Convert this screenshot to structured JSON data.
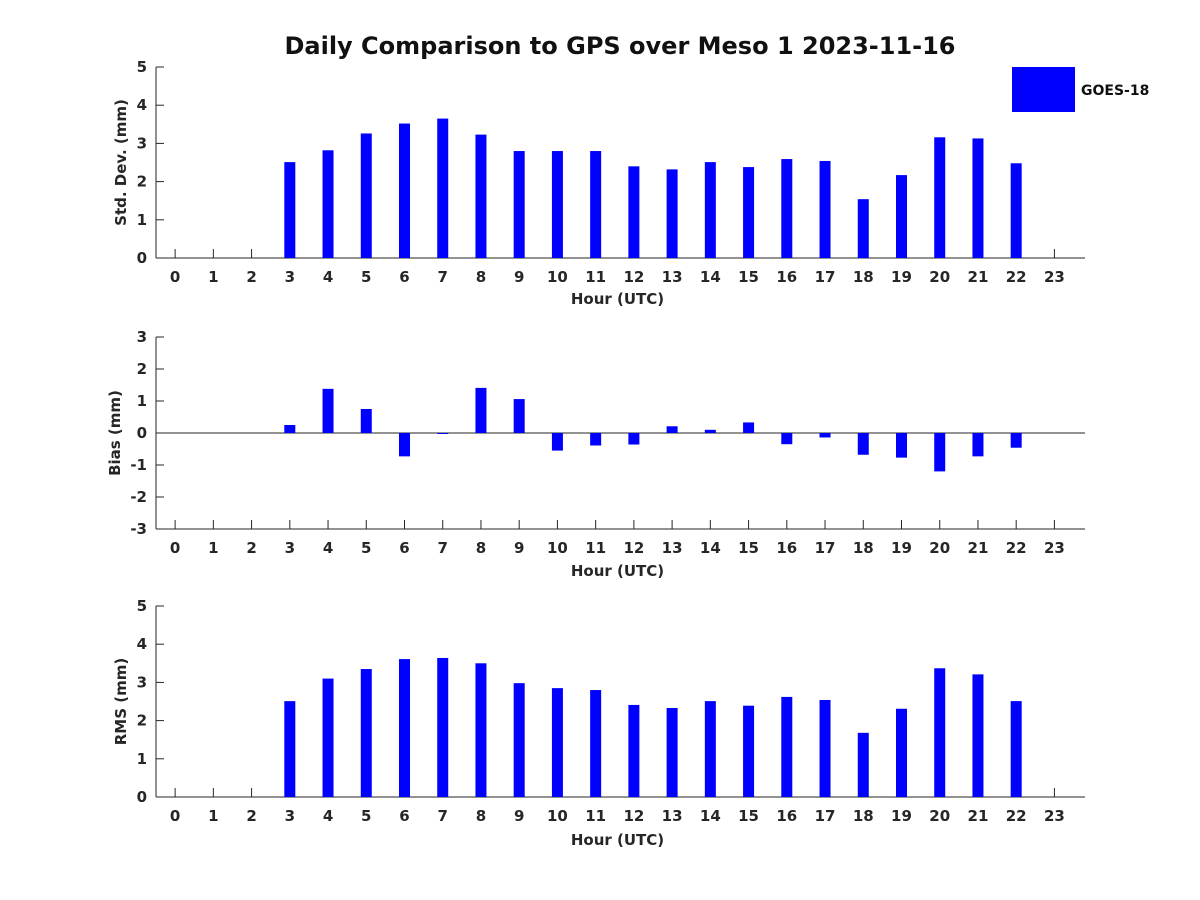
{
  "figure": {
    "title": "Daily Comparison to GPS over Meso 1 2023-11-16"
  },
  "legend": {
    "label": "GOES-18",
    "color": "#0000ff",
    "placement": "top-right"
  },
  "chart_data": [
    {
      "type": "bar",
      "name": "std-dev",
      "xlabel": "Hour (UTC)",
      "ylabel": "Std. Dev. (mm)",
      "xlim": [
        -0.5,
        23.8
      ],
      "ylim": [
        0,
        5
      ],
      "x_ticks": [
        0,
        1,
        2,
        3,
        4,
        5,
        6,
        7,
        8,
        9,
        10,
        11,
        12,
        13,
        14,
        15,
        16,
        17,
        18,
        19,
        20,
        21,
        22,
        23
      ],
      "y_ticks": [
        0,
        1,
        2,
        3,
        4,
        5
      ],
      "grid": false,
      "series": [
        {
          "name": "GOES-18",
          "color": "#0000ff",
          "x": [
            3,
            4,
            5,
            6,
            7,
            8,
            9,
            10,
            11,
            12,
            13,
            14,
            15,
            16,
            17,
            18,
            19,
            20,
            21,
            22
          ],
          "values": [
            2.51,
            2.82,
            3.26,
            3.52,
            3.65,
            3.23,
            2.8,
            2.8,
            2.8,
            2.4,
            2.32,
            2.51,
            2.38,
            2.59,
            2.54,
            1.54,
            2.17,
            3.16,
            3.13,
            2.48
          ]
        }
      ]
    },
    {
      "type": "bar",
      "name": "bias",
      "xlabel": "Hour (UTC)",
      "ylabel": "Bias (mm)",
      "xlim": [
        -0.5,
        23.8
      ],
      "ylim": [
        -3,
        3
      ],
      "x_ticks": [
        0,
        1,
        2,
        3,
        4,
        5,
        6,
        7,
        8,
        9,
        10,
        11,
        12,
        13,
        14,
        15,
        16,
        17,
        18,
        19,
        20,
        21,
        22,
        23
      ],
      "y_ticks": [
        -3,
        -2,
        -1,
        0,
        1,
        2,
        3
      ],
      "grid": false,
      "zero_line": true,
      "series": [
        {
          "name": "GOES-18",
          "color": "#0000ff",
          "x": [
            3,
            4,
            5,
            6,
            7,
            8,
            9,
            10,
            11,
            12,
            13,
            14,
            15,
            16,
            17,
            18,
            19,
            20,
            21,
            22
          ],
          "values": [
            0.25,
            1.38,
            0.75,
            -0.73,
            -0.02,
            1.41,
            1.06,
            -0.55,
            -0.39,
            -0.36,
            0.21,
            0.1,
            0.33,
            -0.35,
            -0.14,
            -0.68,
            -0.77,
            -1.2,
            -0.73,
            -0.46
          ]
        }
      ]
    },
    {
      "type": "bar",
      "name": "rms",
      "xlabel": "Hour (UTC)",
      "ylabel": "RMS (mm)",
      "xlim": [
        -0.5,
        23.8
      ],
      "ylim": [
        0,
        5
      ],
      "x_ticks": [
        0,
        1,
        2,
        3,
        4,
        5,
        6,
        7,
        8,
        9,
        10,
        11,
        12,
        13,
        14,
        15,
        16,
        17,
        18,
        19,
        20,
        21,
        22,
        23
      ],
      "y_ticks": [
        0,
        1,
        2,
        3,
        4,
        5
      ],
      "grid": false,
      "series": [
        {
          "name": "GOES-18",
          "color": "#0000ff",
          "x": [
            3,
            4,
            5,
            6,
            7,
            8,
            9,
            10,
            11,
            12,
            13,
            14,
            15,
            16,
            17,
            18,
            19,
            20,
            21,
            22
          ],
          "values": [
            2.51,
            3.1,
            3.35,
            3.61,
            3.64,
            3.5,
            2.98,
            2.85,
            2.8,
            2.41,
            2.33,
            2.51,
            2.39,
            2.62,
            2.54,
            1.68,
            2.31,
            3.37,
            3.21,
            2.51
          ]
        }
      ]
    }
  ]
}
